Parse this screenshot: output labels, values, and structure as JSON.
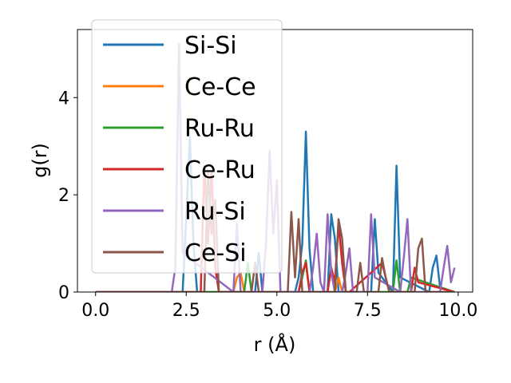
{
  "chart_data": {
    "type": "line",
    "title": "",
    "xlabel": "r (Å)",
    "ylabel": "g(r)",
    "xlim": [
      -0.5,
      10.4
    ],
    "ylim": [
      0,
      5.4
    ],
    "xticks": [
      0.0,
      2.5,
      5.0,
      7.5,
      10.0
    ],
    "xtick_labels": [
      "0.0",
      "2.5",
      "5.0",
      "7.5",
      "10.0"
    ],
    "yticks": [
      0,
      2,
      4
    ],
    "ytick_labels": [
      "0",
      "2",
      "4"
    ],
    "grid": false,
    "legend_position": "top-left",
    "series": [
      {
        "name": "Si-Si",
        "color": "#1f77b4",
        "x": [
          0,
          2.4,
          2.5,
          2.6,
          2.7,
          2.8,
          4.4,
          4.5,
          4.6,
          5.5,
          5.6,
          5.7,
          5.8,
          5.9,
          6.0,
          6.4,
          6.5,
          6.6,
          6.7,
          7.6,
          7.7,
          7.8,
          8.2,
          8.3,
          8.4,
          9.2,
          9.3,
          9.4,
          9.5,
          9.9
        ],
        "y": [
          0,
          0,
          1.5,
          3.2,
          1.0,
          0,
          0,
          0.8,
          0,
          0,
          0.3,
          1.0,
          3.3,
          0.9,
          0,
          0,
          1.6,
          1.1,
          0,
          0,
          1.5,
          0.4,
          0,
          2.6,
          0.3,
          0,
          0.5,
          0.75,
          0.1,
          0
        ]
      },
      {
        "name": "Ce-Ce",
        "color": "#ff7f0e",
        "x": [
          0,
          3.8,
          3.9,
          4.0,
          4.1,
          6.6,
          6.7,
          6.8,
          9.9
        ],
        "y": [
          0,
          0,
          0.3,
          0.4,
          0,
          0,
          0.3,
          0,
          0
        ]
      },
      {
        "name": "Ru-Ru",
        "color": "#2ca02c",
        "x": [
          0,
          4.1,
          4.2,
          4.3,
          5.6,
          5.7,
          5.8,
          5.9,
          8.2,
          8.3,
          8.4,
          8.6,
          8.7,
          9.9
        ],
        "y": [
          0,
          0,
          0.6,
          0,
          0,
          0.3,
          0.65,
          0,
          0,
          0.65,
          0,
          0,
          0.3,
          0
        ]
      },
      {
        "name": "Ce-Ru",
        "color": "#d62728",
        "x": [
          0,
          2.9,
          3.0,
          3.1,
          3.2,
          3.3,
          3.4,
          5.6,
          5.7,
          5.8,
          5.9,
          6.4,
          6.5,
          6.6,
          6.7,
          6.8,
          6.9,
          7.0,
          7.9,
          8.0,
          8.1,
          8.7,
          8.8,
          8.9,
          9.9
        ],
        "y": [
          0,
          0,
          2.6,
          1.0,
          2.5,
          0.5,
          0,
          0,
          0.4,
          0.6,
          0,
          0,
          0.5,
          0.2,
          1.4,
          0.6,
          0,
          0,
          0.6,
          0.3,
          0,
          0,
          0.5,
          0.2,
          0
        ]
      },
      {
        "name": "Ru-Si",
        "color": "#9467bd",
        "x": [
          0,
          2.1,
          2.2,
          2.3,
          2.4,
          3.8,
          3.9,
          4.0,
          4.6,
          4.7,
          4.8,
          4.9,
          5.0,
          5.1,
          5.9,
          6.0,
          6.1,
          6.2,
          6.3,
          6.4,
          6.5,
          6.6,
          6.8,
          6.9,
          7.0,
          7.1,
          7.5,
          7.6,
          7.7,
          8.4,
          8.5,
          8.6,
          8.7,
          9.5,
          9.6,
          9.7,
          9.8,
          9.9
        ],
        "y": [
          0,
          0,
          0.5,
          5.1,
          0.8,
          0,
          1.4,
          0,
          0,
          1.0,
          2.9,
          1.2,
          2.3,
          0,
          0,
          0.5,
          1.2,
          0.2,
          0,
          1.6,
          0.4,
          0,
          0,
          0.4,
          0.9,
          0,
          0,
          1.6,
          0.3,
          0,
          0.7,
          1.5,
          0,
          0,
          0.5,
          0.95,
          0.2,
          0.5
        ]
      },
      {
        "name": "Ce-Si",
        "color": "#8c564b",
        "x": [
          0,
          3.0,
          3.1,
          3.2,
          3.3,
          3.4,
          4.3,
          4.4,
          4.5,
          5.3,
          5.4,
          5.5,
          5.6,
          5.7,
          6.6,
          6.7,
          6.8,
          6.9,
          7.2,
          7.3,
          7.4,
          7.8,
          7.9,
          8.0,
          8.1,
          8.8,
          8.9,
          9.0,
          9.1,
          9.9
        ],
        "y": [
          0,
          0,
          2.5,
          1.2,
          1.9,
          0,
          0,
          0.6,
          0,
          0,
          1.65,
          0.3,
          1.5,
          0,
          0,
          1.5,
          1.1,
          0,
          0,
          0.6,
          0,
          0,
          0.7,
          0.3,
          0,
          0,
          0.9,
          1.1,
          0,
          0
        ]
      }
    ]
  }
}
